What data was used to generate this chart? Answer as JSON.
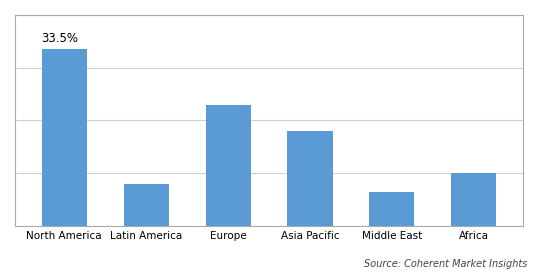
{
  "categories": [
    "North America",
    "Latin America",
    "Europe",
    "Asia Pacific",
    "Middle East",
    "Africa"
  ],
  "values": [
    33.5,
    8.0,
    23.0,
    18.0,
    6.5,
    10.0
  ],
  "bar_color": "#5B9BD5",
  "annotation_label": "33.5%",
  "annotation_index": 0,
  "ylim": [
    0,
    40
  ],
  "yticks": [
    0,
    10,
    20,
    30,
    40
  ],
  "source_text": "Source: Coherent Market Insights",
  "background_color": "#ffffff",
  "grid_color": "#d0d0d0",
  "bar_width": 0.55
}
